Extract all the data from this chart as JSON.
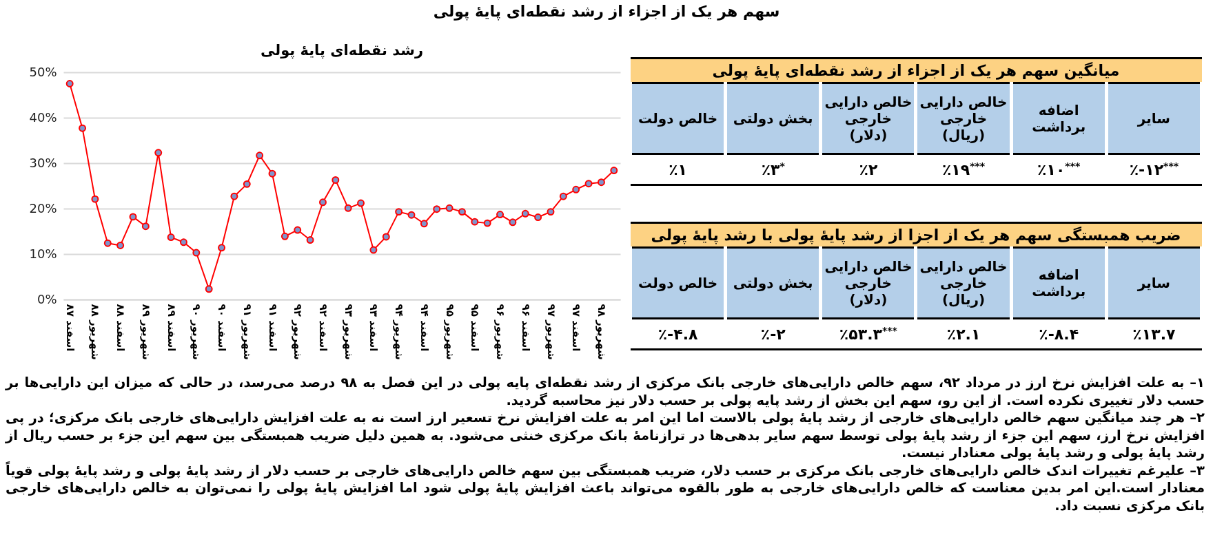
{
  "chart_data": [
    {
      "type": "line",
      "title": "سهم هر یک از اجزاء از رشد نقطه‌ای پایهٔ پولی",
      "subtitle": "رشد نقطه‌ای پایهٔ پولی",
      "categories": [
        "اسفند ۸۷",
        null,
        "شهریور ۸۸",
        null,
        "اسفند ۸۸",
        null,
        "شهریور ۸۹",
        null,
        "اسفند ۸۹",
        null,
        "شهریور ۹۰",
        null,
        "اسفند ۹۰",
        null,
        "شهریور ۹۱",
        null,
        "اسفند ۹۱",
        null,
        "شهریور ۹۲",
        null,
        "اسفند ۹۲",
        null,
        "شهریور ۹۳",
        null,
        "اسفند ۹۳",
        null,
        "شهریور ۹۴",
        null,
        "اسفند ۹۴",
        null,
        "شهریور ۹۵",
        null,
        "اسفند ۹۵",
        null,
        "شهریور ۹۶",
        null,
        "اسفند ۹۶",
        null,
        "شهریور ۹۷",
        null,
        "اسفند ۹۷",
        null,
        "شهریور ۹۸",
        null
      ],
      "series": [
        {
          "color": "#ff0000",
          "values": [
            47.5,
            37.7,
            22.1,
            12.4,
            11.9,
            18.2,
            16.1,
            32.3,
            13.7,
            12.6,
            10.3,
            2.3,
            11.4,
            22.7,
            25.4,
            31.7,
            27.7,
            13.9,
            15.3,
            13.1,
            21.4,
            26.3,
            20.1,
            21.2,
            10.9,
            13.8,
            19.3,
            18.6,
            16.7,
            19.9,
            20.1,
            19.3,
            17.1,
            16.8,
            18.7,
            17.0,
            18.9,
            18.1,
            19.3,
            22.7,
            24.2,
            25.5,
            25.8,
            28.4
          ]
        }
      ],
      "ylim": [
        0,
        50
      ],
      "yticks": [
        {
          "value": 0,
          "label": "0%"
        },
        {
          "value": 10,
          "label": "10%"
        },
        {
          "value": 20,
          "label": "20%"
        },
        {
          "value": 30,
          "label": "30%"
        },
        {
          "value": 40,
          "label": "40%"
        },
        {
          "value": 50,
          "label": "50%"
        }
      ],
      "grid": "y",
      "marker": "circle",
      "annotations": [
        "۱– به علت افزایش نرخ ارز در مرداد ۹۲، سهم خالص دارایی‌های خارجی بانک مرکزی از رشد نقطه‌ای پایه پولی در این فصل به ۹۸ درصد می‌رسد، در حالی که میزان این دارایی‌ها بر حسب دلار تغییری نکرده است. از این رو، سهم این بخش از رشد پایه پولی بر حسب دلار نیز محاسبه گردید.",
        "۲– هر چند میانگین سهم خالص دارایی‌های خارجی از رشد پایهٔ پولی بالاست اما این امر به علت افزایش نرخ تسعیر ارز است نه به علت افزایش دارایی‌های خارجی بانک مرکزی؛ در پی افزایش نرخ ارز، سهم این جزء از رشد پایهٔ پولی توسط سهم سایر بدهی‌ها در ترازنامهٔ بانک مرکزی خنثی می‌شود. به همین دلیل ضریب همبستگی بین سهم این جزء بر حسب ریال از رشد پایهٔ پولی و رشد پایهٔ پولی معنادار نیست.",
        "۳– علیرغم تغییرات اندک خالص دارایی‌های خارجی بانک مرکزی بر حسب دلار، ضریب همبستگی بین سهم خالص دارایی‌های خارجی بر حسب دلار از رشد پایهٔ پولی و رشد پایهٔ پولی قویاً معنادار است.این امر بدین معناست که خالص دارایی‌های خارجی به طور بالقوه می‌تواند باعث افزایش پایهٔ پولی شود اما افزایش پایهٔ پولی را نمی‌توان به خالص دارایی‌های خارجی بانک مرکزی نسبت داد."
      ]
    },
    {
      "type": "other",
      "title": "میانگین سهم هر یک از اجزاء از رشد نقطه‌ای پایهٔ پولی",
      "categories": [
        "خالص دولت",
        "بخش دولتی",
        "خالص دارایی خارجی (دلار)",
        "خالص دارایی خارجی (ریال)",
        "اضافه برداشت",
        "سایر"
      ],
      "value_labels": [
        "٪۱",
        "٪۳$^{*}$",
        "٪۲",
        "٪۱۹$^{***}$",
        "٪۱۰$^{***}$",
        "٪-۱۲$^{***}$"
      ]
    },
    {
      "type": "other",
      "title": "ضریب همبستگی سهم هر یک از اجزا از رشد پایهٔ پولی با رشد پایهٔ پولی",
      "categories": [
        "خالص دولت",
        "بخش دولتی",
        "خالص دارایی خارجی (دلار)",
        "خالص دارایی خارجی (ریال)",
        "اضافه برداشت",
        "سایر"
      ],
      "value_labels": [
        "٪-۴.۸",
        "٪-۲",
        "٪۵۳.۳$^{***}$",
        "٪۲.۱",
        "٪-۸.۴",
        "٪۱۳.۷"
      ]
    }
  ]
}
